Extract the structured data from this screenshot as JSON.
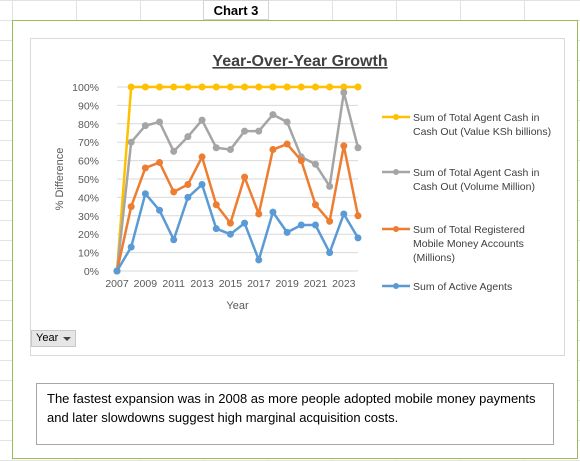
{
  "sheet": {
    "chart_label": "Chart 3"
  },
  "filter": {
    "label": "Year"
  },
  "note": {
    "text": "The fastest expansion was in 2008 as more people adopted mobile money payments and later slowdowns suggest high marginal acquisition costs."
  },
  "chart_data": {
    "type": "line",
    "title": "Year-Over-Year Growth",
    "xlabel": "Year",
    "ylabel": "% Difference",
    "ylim": [
      0,
      1
    ],
    "yticks": [
      "0%",
      "10%",
      "20%",
      "30%",
      "40%",
      "50%",
      "60%",
      "70%",
      "80%",
      "90%",
      "100%"
    ],
    "xtick_labels": [
      "2007",
      "2009",
      "2011",
      "2013",
      "2015",
      "2017",
      "2019",
      "2021",
      "2023"
    ],
    "x": [
      2007,
      2008,
      2009,
      2010,
      2011,
      2012,
      2013,
      2014,
      2015,
      2016,
      2017,
      2018,
      2019,
      2020,
      2021,
      2022,
      2023,
      2024
    ],
    "grid": true,
    "legend_position": "right",
    "series": [
      {
        "name": "Sum of Total Agent Cash in Cash Out (Value KSh billions)",
        "color": "#FFC000",
        "values": [
          0,
          1,
          1,
          1,
          1,
          1,
          1,
          1,
          1,
          1,
          1,
          1,
          1,
          1,
          1,
          1,
          1,
          1
        ]
      },
      {
        "name": "Sum of Total Agent Cash in Cash Out (Volume Million)",
        "color": "#A5A5A5",
        "values": [
          0,
          0.7,
          0.79,
          0.81,
          0.65,
          0.73,
          0.82,
          0.67,
          0.66,
          0.76,
          0.76,
          0.85,
          0.81,
          0.62,
          0.58,
          0.46,
          0.97,
          0.67
        ]
      },
      {
        "name": "Sum of Total Registered Mobile Money Accounts (Millions)",
        "color": "#ED7D31",
        "values": [
          0,
          0.35,
          0.56,
          0.59,
          0.43,
          0.47,
          0.62,
          0.36,
          0.26,
          0.51,
          0.31,
          0.66,
          0.69,
          0.6,
          0.36,
          0.27,
          0.68,
          0.3
        ]
      },
      {
        "name": "Sum of Active Agents",
        "color": "#5B9BD5",
        "values": [
          0,
          0.13,
          0.42,
          0.33,
          0.17,
          0.4,
          0.47,
          0.23,
          0.2,
          0.26,
          0.06,
          0.32,
          0.21,
          0.25,
          0.25,
          0.1,
          0.31,
          0.18
        ]
      }
    ]
  }
}
